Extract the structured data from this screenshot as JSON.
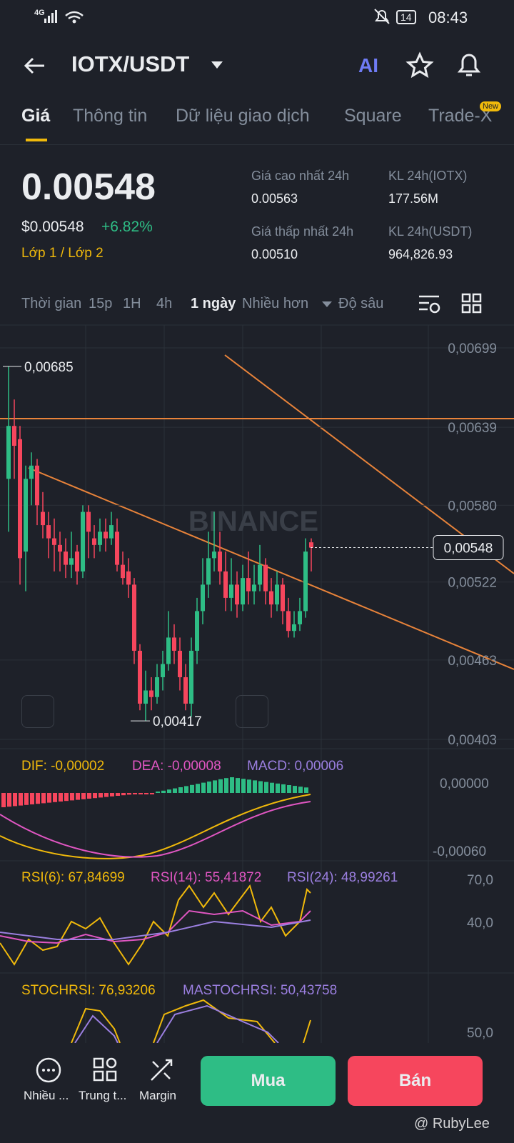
{
  "status": {
    "network": "4G",
    "time": "08:43",
    "battery": "14"
  },
  "header": {
    "pair": "IOTX/USDT",
    "ai": "AI"
  },
  "tabs": {
    "items": [
      "Giá",
      "Thông tin",
      "Dữ liệu giao dịch",
      "Square",
      "Trade-X"
    ],
    "badge": "New"
  },
  "price": {
    "last": "0.00548",
    "usd": "$0.00548",
    "change": "+6.82%",
    "layer": "Lớp 1 / Lớp 2"
  },
  "stats": [
    {
      "label": "Giá cao nhất 24h",
      "value": "0.00563"
    },
    {
      "label": "KL 24h(IOTX)",
      "value": "177.56M"
    },
    {
      "label": "Giá thấp nhất 24h",
      "value": "0.00510"
    },
    {
      "label": "KL 24h(USDT)",
      "value": "964,826.93"
    }
  ],
  "intervals": [
    "Thời gian",
    "15p",
    "1H",
    "4h",
    "1 ngày",
    "Nhiều hơn",
    "Độ sâu"
  ],
  "chart": {
    "type": "candlestick",
    "watermark": "BINANCE",
    "up_color": "#2ebd85",
    "down_color": "#f6465d",
    "ylim": [
      0.00403,
      0.00699
    ],
    "yticks": [
      {
        "value": 0.00699,
        "label": "0,00699"
      },
      {
        "value": 0.00639,
        "label": "0,00639"
      },
      {
        "value": 0.0058,
        "label": "0,00580"
      },
      {
        "value": 0.00522,
        "label": "0,00522"
      },
      {
        "value": 0.00463,
        "label": "0,00463"
      },
      {
        "value": 0.00403,
        "label": "0,00403"
      }
    ],
    "last_price": {
      "value": 0.00548,
      "label": "0,00548"
    },
    "high_label": {
      "value": 0.00685,
      "label": "0,00685"
    },
    "low_label": {
      "value": 0.00417,
      "label": "0,00417"
    },
    "candles": [
      [
        0.006,
        0.00685,
        0.0056,
        0.0064
      ],
      [
        0.0064,
        0.0066,
        0.006,
        0.00625
      ],
      [
        0.0063,
        0.0064,
        0.0052,
        0.0054
      ],
      [
        0.00545,
        0.0061,
        0.00515,
        0.006
      ],
      [
        0.006,
        0.0062,
        0.0058,
        0.0061
      ],
      [
        0.0061,
        0.00615,
        0.00565,
        0.0058
      ],
      [
        0.00575,
        0.0059,
        0.00555,
        0.00565
      ],
      [
        0.00565,
        0.00575,
        0.0054,
        0.00555
      ],
      [
        0.00555,
        0.0057,
        0.0053,
        0.0055
      ],
      [
        0.0055,
        0.0056,
        0.0053,
        0.00545
      ],
      [
        0.00545,
        0.00555,
        0.00525,
        0.00535
      ],
      [
        0.00535,
        0.0056,
        0.00525,
        0.0054
      ],
      [
        0.00545,
        0.0055,
        0.0052,
        0.0053
      ],
      [
        0.0053,
        0.0058,
        0.00525,
        0.00575
      ],
      [
        0.00575,
        0.0058,
        0.0054,
        0.0056
      ],
      [
        0.00555,
        0.00565,
        0.0054,
        0.0055
      ],
      [
        0.0055,
        0.0057,
        0.00545,
        0.0056
      ],
      [
        0.0056,
        0.0057,
        0.00545,
        0.00555
      ],
      [
        0.00555,
        0.00575,
        0.0055,
        0.00565
      ],
      [
        0.0056,
        0.0057,
        0.0053,
        0.00535
      ],
      [
        0.00535,
        0.00545,
        0.0052,
        0.00525
      ],
      [
        0.0053,
        0.0054,
        0.0051,
        0.0052
      ],
      [
        0.0052,
        0.00525,
        0.0046,
        0.0047
      ],
      [
        0.0047,
        0.00475,
        0.00425,
        0.0043
      ],
      [
        0.0043,
        0.00455,
        0.00417,
        0.0044
      ],
      [
        0.0044,
        0.0045,
        0.00425,
        0.00435
      ],
      [
        0.00435,
        0.0046,
        0.0043,
        0.0045
      ],
      [
        0.0045,
        0.0047,
        0.0044,
        0.0046
      ],
      [
        0.0046,
        0.005,
        0.00455,
        0.0048
      ],
      [
        0.0048,
        0.0049,
        0.0046,
        0.0047
      ],
      [
        0.0047,
        0.0048,
        0.0044,
        0.0045
      ],
      [
        0.0045,
        0.0046,
        0.00425,
        0.0043
      ],
      [
        0.0043,
        0.0048,
        0.0042,
        0.0047
      ],
      [
        0.0047,
        0.0051,
        0.0046,
        0.005
      ],
      [
        0.005,
        0.0054,
        0.0049,
        0.0052
      ],
      [
        0.0052,
        0.0056,
        0.0051,
        0.0054
      ],
      [
        0.0054,
        0.00575,
        0.0053,
        0.00545
      ],
      [
        0.00545,
        0.0056,
        0.0052,
        0.0053
      ],
      [
        0.0053,
        0.00545,
        0.005,
        0.0051
      ],
      [
        0.0051,
        0.0054,
        0.005,
        0.0052
      ],
      [
        0.0052,
        0.0053,
        0.00495,
        0.00505
      ],
      [
        0.00505,
        0.00535,
        0.005,
        0.00525
      ],
      [
        0.00525,
        0.00545,
        0.00505,
        0.00515
      ],
      [
        0.00515,
        0.00535,
        0.00505,
        0.0052
      ],
      [
        0.0052,
        0.0055,
        0.00515,
        0.00535
      ],
      [
        0.00535,
        0.0054,
        0.00505,
        0.00515
      ],
      [
        0.00515,
        0.00525,
        0.00495,
        0.00505
      ],
      [
        0.00505,
        0.0053,
        0.005,
        0.0052
      ],
      [
        0.0052,
        0.00525,
        0.0049,
        0.005
      ],
      [
        0.005,
        0.0051,
        0.0048,
        0.00485
      ],
      [
        0.00485,
        0.005,
        0.0048,
        0.0049
      ],
      [
        0.0049,
        0.0051,
        0.00485,
        0.005
      ],
      [
        0.005,
        0.00555,
        0.00495,
        0.00545
      ],
      [
        0.00552,
        0.00555,
        0.0053,
        0.00548
      ]
    ]
  },
  "macd": {
    "dif": "DIF: -0,00002",
    "dea": "DEA: -0,00008",
    "macd": "MACD: 0,00006",
    "axis": [
      "0,00000",
      "-0,00060"
    ]
  },
  "rsi": {
    "rsi6": "RSI(6): 67,84699",
    "rsi14": "RSI(14): 55,41872",
    "rsi24": "RSI(24): 48,99261",
    "axis": [
      "70,0",
      "40,0"
    ]
  },
  "stoch": {
    "stochrsi": "STOCHRSI: 76,93206",
    "mastochrsi": "MASTOCHRSI: 50,43758",
    "axis": [
      "50,0"
    ]
  },
  "nav": {
    "items": [
      "Nhiều ...",
      "Trung t...",
      "Margin"
    ],
    "buy": "Mua",
    "sell": "Bán",
    "credit": "@ RubyLee"
  }
}
